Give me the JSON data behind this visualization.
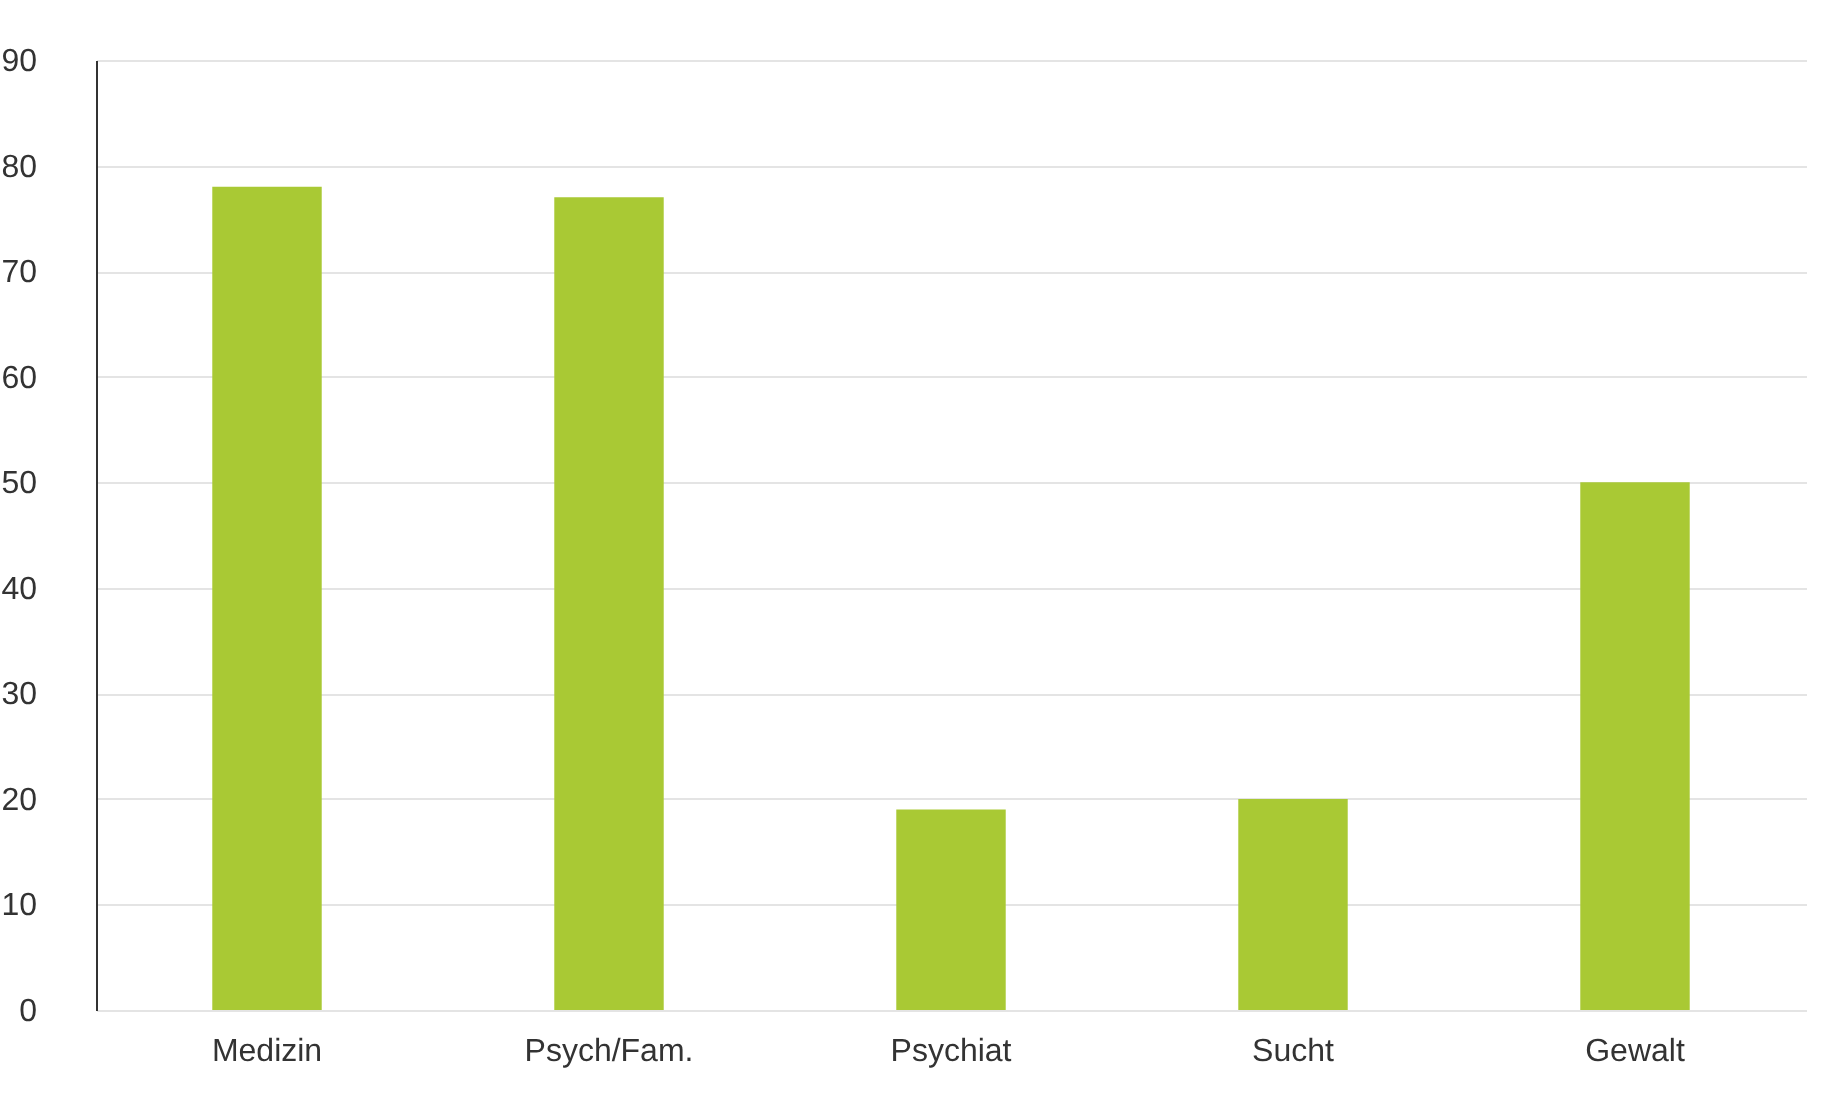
{
  "chart_data": {
    "type": "bar",
    "categories": [
      "Medizin",
      "Psych/Fam.",
      "Psychiat",
      "Sucht",
      "Gewalt"
    ],
    "values": [
      78,
      77,
      19,
      20,
      50
    ],
    "color": "#a9c934",
    "ylim": [
      0,
      90
    ],
    "yticks": [
      0,
      10,
      20,
      30,
      40,
      50,
      60,
      70,
      80,
      90
    ],
    "grid": "y"
  }
}
